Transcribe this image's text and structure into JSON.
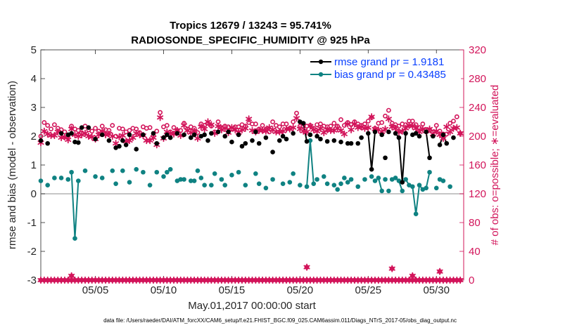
{
  "colors": {
    "rmse": "#000000",
    "bias": "#0f8282",
    "obs": "#d2145a",
    "legend_text": "#0a40ff",
    "zero_line": "#b4b4b4",
    "axis": "#262626"
  },
  "chart_data": {
    "type": "line",
    "title": [
      "Tropics 12679 / 13243 = 95.741%",
      "RADIOSONDE_SPECIFIC_HUMIDITY @ 925 hPa"
    ],
    "xlabel": "May.01,2017 00:00:00 start",
    "ylabel_left": "rmse and bias (model - observation)",
    "ylabel_right": "# of obs: o=possible; ∗=evaluated",
    "footnote": "data file: /Users/raeder/DAI/ATM_forcXX/CAM6_setup/f.e21.FHIST_BGC.f09_025.CAM6assim.011/Diags_NTrS_2017-05/obs_diag_output.nc",
    "xlim": [
      1,
      32
    ],
    "ylim_left": [
      -3,
      5
    ],
    "ylim_right": [
      0,
      320
    ],
    "x_ticks": [
      5,
      10,
      15,
      20,
      25,
      30
    ],
    "x_tick_labels": [
      "05/05",
      "05/10",
      "05/15",
      "05/20",
      "05/25",
      "05/30"
    ],
    "y_ticks_left": [
      -3,
      -2,
      -1,
      0,
      1,
      2,
      3,
      4,
      5
    ],
    "y_tick_labels_left": [
      "-3",
      "-2",
      "-1",
      "0",
      "1",
      "2",
      "3",
      "4",
      "5"
    ],
    "y_ticks_right": [
      0,
      40,
      80,
      120,
      160,
      200,
      240,
      280,
      320
    ],
    "y_tick_labels_right": [
      "0",
      "40",
      "80",
      "120",
      "160",
      "200",
      "240",
      "280",
      "320"
    ],
    "legend": {
      "position": "top-right",
      "rmse_label": "rmse grand pr = 1.9181",
      "bias_label": "bias grand pr = 0.43485"
    },
    "x": [
      1,
      1.25,
      1.5,
      1.75,
      2,
      2.25,
      2.5,
      2.75,
      3,
      3.25,
      3.5,
      3.75,
      4,
      4.25,
      4.5,
      4.75,
      5,
      5.25,
      5.5,
      5.75,
      6,
      6.25,
      6.5,
      6.75,
      7,
      7.25,
      7.5,
      7.75,
      8,
      8.25,
      8.5,
      8.75,
      9,
      9.25,
      9.5,
      9.75,
      10,
      10.25,
      10.5,
      10.75,
      11,
      11.25,
      11.5,
      11.75,
      12,
      12.25,
      12.5,
      12.75,
      13,
      13.25,
      13.5,
      13.75,
      14,
      14.25,
      14.5,
      14.75,
      15,
      15.25,
      15.5,
      15.75,
      16,
      16.25,
      16.5,
      16.75,
      17,
      17.25,
      17.5,
      17.75,
      18,
      18.25,
      18.5,
      18.75,
      19,
      19.25,
      19.5,
      19.75,
      20,
      20.25,
      20.5,
      20.75,
      21,
      21.25,
      21.5,
      21.75,
      22,
      22.25,
      22.5,
      22.75,
      23,
      23.25,
      23.5,
      23.75,
      24,
      24.25,
      24.5,
      24.75,
      25,
      25.25,
      25.5,
      25.75,
      26,
      26.25,
      26.5,
      26.75,
      27,
      27.25,
      27.5,
      27.75,
      28,
      28.25,
      28.5,
      28.75,
      29,
      29.25,
      29.5,
      29.75,
      30,
      30.25,
      30.5,
      30.75,
      31,
      31.25,
      31.5,
      31.75
    ],
    "series": [
      {
        "name": "rmse",
        "values": [
          1.85,
          null,
          1.75,
          null,
          null,
          null,
          2.1,
          null,
          2.05,
          2.1,
          1.8,
          1.78,
          2.3,
          null,
          2.3,
          null,
          1.9,
          null,
          2.05,
          null,
          1.85,
          null,
          1.6,
          1.65,
          1.85,
          1.7,
          2.05,
          null,
          1.55,
          null,
          2.05,
          null,
          null,
          2.1,
          1.75,
          null,
          1.95,
          2.05,
          1.95,
          null,
          2.1,
          null,
          2.05,
          null,
          1.95,
          2.05,
          null,
          2.0,
          2.05,
          1.85,
          2.1,
          null,
          2.15,
          null,
          2.0,
          2.15,
          1.8,
          null,
          2.05,
          1.65,
          1.75,
          null,
          1.85,
          2.15,
          1.75,
          null,
          1.95,
          null,
          1.45,
          null,
          1.85,
          2.0,
          1.9,
          null,
          2.1,
          null,
          2.5,
          2.45,
          1.82,
          2.05,
          null,
          2.0,
          1.9,
          null,
          1.82,
          null,
          1.85,
          null,
          1.8,
          null,
          1.75,
          1.75,
          null,
          1.75,
          1.95,
          null,
          2.1,
          0.85,
          2.15,
          null,
          2.05,
          1.25,
          2.15,
          null,
          2.1,
          1.95,
          0.4,
          2.1,
          null,
          2.05,
          2.1,
          2.0,
          null,
          2.15,
          1.25,
          2.0,
          null,
          1.7,
          2.05,
          1.75,
          null,
          1.95,
          null,
          null
        ],
        "segments": [
          [
            16,
            17
          ],
          [
            18,
            19
          ],
          [
            26,
            27
          ],
          [
            27,
            28
          ],
          [
            28,
            29
          ],
          [
            37,
            38
          ],
          [
            66,
            67
          ],
          [
            75,
            76
          ],
          [
            76,
            77
          ],
          [
            77,
            78
          ],
          [
            96,
            97
          ],
          [
            97,
            98
          ],
          [
            98,
            99
          ],
          [
            103,
            104
          ],
          [
            104,
            105
          ],
          [
            105,
            106
          ],
          [
            106,
            107
          ],
          [
            107,
            108
          ],
          [
            111,
            112
          ],
          [
            112,
            113
          ],
          [
            113,
            114
          ],
          [
            117,
            118
          ],
          [
            118,
            119
          ]
        ]
      },
      {
        "name": "bias",
        "values": [
          0.45,
          null,
          0.3,
          null,
          0.55,
          null,
          0.55,
          null,
          0.5,
          0.75,
          -1.55,
          0.45,
          null,
          0.8,
          null,
          null,
          0.6,
          null,
          0.55,
          null,
          null,
          0.8,
          0.35,
          null,
          0.8,
          null,
          0.4,
          null,
          0.85,
          null,
          0.75,
          null,
          0.3,
          null,
          0.75,
          null,
          0.6,
          0.75,
          0.85,
          null,
          0.45,
          0.5,
          0.5,
          null,
          0.45,
          0.45,
          0.8,
          0.55,
          0.3,
          null,
          0.3,
          0.7,
          null,
          0.5,
          0.3,
          null,
          0.65,
          null,
          0.75,
          null,
          0.3,
          null,
          null,
          0.7,
          0.35,
          null,
          0.2,
          null,
          0.5,
          null,
          null,
          0.35,
          null,
          0.4,
          0.7,
          null,
          0.3,
          null,
          0.25,
          1.85,
          0.35,
          0.5,
          null,
          0.6,
          0.35,
          null,
          0.3,
          0.15,
          0.35,
          0.55,
          0.4,
          0.5,
          null,
          0.25,
          null,
          0.5,
          null,
          0.6,
          0.45,
          0.55,
          0.1,
          0.5,
          0.1,
          0.5,
          0.55,
          0.45,
          0.1,
          0.5,
          0.3,
          0.25,
          -0.7,
          0.3,
          0.15,
          0.2,
          0.75,
          null,
          0.2,
          0.5,
          0.45,
          null,
          0.25,
          null,
          null,
          null
        ],
        "segments": [
          [
            9,
            10
          ],
          [
            10,
            11
          ],
          [
            78,
            79
          ],
          [
            79,
            80
          ],
          [
            99,
            100
          ],
          [
            104,
            105
          ],
          [
            105,
            106
          ],
          [
            107,
            108
          ],
          [
            108,
            109
          ],
          [
            109,
            110
          ],
          [
            110,
            111
          ],
          [
            111,
            112
          ],
          [
            112,
            113
          ],
          [
            113,
            114
          ]
        ]
      },
      {
        "name": "obs possible",
        "values": [
          200,
          219,
          215,
          210,
          216,
          211,
          209,
          206,
          200,
          214,
          210,
          208,
          205,
          214,
          209,
          207,
          211,
          207,
          214,
          209,
          208,
          215,
          200,
          211,
          210,
          206,
          208,
          211,
          210,
          205,
          213,
          211,
          212,
          201,
          207,
          233,
          213,
          215,
          206,
          212,
          208,
          208,
          218,
          210,
          213,
          211,
          205,
          217,
          215,
          218,
          214,
          206,
          220,
          212,
          214,
          213,
          210,
          213,
          213,
          216,
          214,
          219,
          217,
          217,
          210,
          215,
          210,
          206,
          220,
          215,
          213,
          217,
          217,
          211,
          220,
          232,
          214,
          213,
          214,
          215,
          211,
          216,
          217,
          214,
          213,
          214,
          218,
          214,
          223,
          215,
          219,
          216,
          220,
          217,
          215,
          217,
          221,
          226,
          211,
          218,
          219,
          228,
          236,
          218,
          216,
          214,
          217,
          216,
          221,
          221,
          216,
          212,
          217,
          209,
          209,
          206,
          215,
          207,
          203,
          203,
          218,
          221,
          227,
          204
        ]
      },
      {
        "name": "obs evaluated",
        "values": [
          191,
          207,
          203,
          201,
          201,
          206,
          198,
          199,
          195,
          210,
          202,
          200,
          202,
          204,
          200,
          199,
          196,
          202,
          207,
          202,
          203,
          200,
          190,
          199,
          201,
          193,
          194,
          198,
          204,
          202,
          201,
          194,
          194,
          198,
          188,
          226,
          197,
          206,
          204,
          203,
          208,
          201,
          215,
          208,
          205,
          207,
          197,
          213,
          210,
          220,
          216,
          204,
          214,
          209,
          211,
          205,
          212,
          209,
          205,
          209,
          211,
          224,
          208,
          206,
          208,
          208,
          207,
          212,
          209,
          206,
          206,
          207,
          210,
          210,
          212,
          225,
          210,
          207,
          206,
          214,
          209,
          207,
          211,
          205,
          209,
          208,
          208,
          211,
          208,
          203,
          217,
          209,
          217,
          212,
          213,
          211,
          212,
          227,
          210,
          209,
          206,
          210,
          224,
          213,
          211,
          206,
          207,
          211,
          215,
          214,
          211,
          206,
          210,
          207,
          210,
          203,
          207,
          202,
          197,
          213,
          206,
          211,
          212,
          204
        ]
      },
      {
        "name": "obs zero",
        "values": [
          0,
          0,
          0,
          0,
          0,
          0,
          0,
          0,
          0,
          0,
          0,
          0,
          0,
          0,
          0,
          0,
          0,
          0,
          0,
          0,
          0,
          0,
          0,
          0,
          0,
          0,
          0,
          0,
          0,
          0,
          0,
          0,
          0,
          0,
          0,
          0,
          0,
          0,
          0,
          0,
          0,
          0,
          0,
          0,
          0,
          0,
          0,
          0,
          0,
          0,
          0,
          0,
          0,
          0,
          0,
          0,
          0,
          0,
          0,
          0,
          0,
          0,
          0,
          0,
          0,
          0,
          0,
          0,
          0,
          0,
          0,
          0,
          0,
          0,
          0,
          0,
          0,
          0,
          0,
          0,
          0,
          0,
          0,
          0,
          0,
          0,
          0,
          0,
          0,
          0,
          0,
          0,
          0,
          0,
          0,
          0,
          0,
          0,
          0,
          0,
          0,
          0,
          0,
          0,
          0,
          0,
          0,
          0,
          0,
          0,
          0,
          0,
          0,
          0,
          0,
          0,
          0,
          0,
          0,
          0,
          0,
          0,
          0,
          0
        ]
      },
      {
        "name": "obs extra",
        "x": [
          3.25,
          20.5,
          26.75,
          28.25,
          30.25
        ],
        "values": [
          6,
          18,
          16,
          6,
          12
        ]
      }
    ]
  }
}
